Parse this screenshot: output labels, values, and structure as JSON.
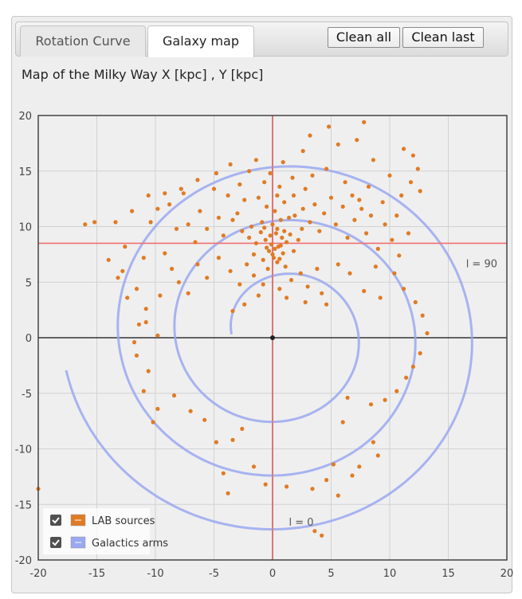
{
  "tabs": [
    {
      "label": "Rotation Curve",
      "active": false
    },
    {
      "label": "Galaxy map",
      "active": true
    }
  ],
  "buttons": {
    "clean_all": "Clean all",
    "clean_last": "Clean last"
  },
  "chart_data": {
    "type": "scatter",
    "title": "Map of the Milky Way X [kpc] , Y [kpc]",
    "xlim": [
      -20,
      20
    ],
    "ylim": [
      -20,
      20
    ],
    "xticks": [
      -20,
      -15,
      -10,
      -5,
      0,
      5,
      10,
      15,
      20
    ],
    "yticks": [
      -20,
      -15,
      -10,
      -5,
      0,
      5,
      10,
      15,
      20
    ],
    "grid": true,
    "legend": {
      "placement": "bottom-left"
    },
    "series": [
      {
        "name": "LAB sources",
        "color": "#e07b24",
        "checked": true
      },
      {
        "name": "Galactics arms",
        "color": "#9aa8f0",
        "checked": true
      }
    ],
    "reference_lines": [
      {
        "axis": "y",
        "value": 8.5,
        "label": "l = 90",
        "color": "#f07070"
      },
      {
        "axis": "x",
        "value": 0,
        "label": "l = 0",
        "color": "#f07070"
      }
    ],
    "sun_position": [
      0,
      0
    ],
    "arm_spiral": {
      "center": [
        0.7,
        0.3
      ],
      "theta_start_deg": 180,
      "r_start": 4.2,
      "r_end": 18.6,
      "turns_deg": 1070
    },
    "points": [
      [
        -0.2,
        9.2
      ],
      [
        0.3,
        9.4
      ],
      [
        0.8,
        9.0
      ],
      [
        -0.6,
        8.8
      ],
      [
        1.2,
        8.6
      ],
      [
        -1.0,
        9.5
      ],
      [
        0.5,
        8.2
      ],
      [
        -0.3,
        7.8
      ],
      [
        1.5,
        9.3
      ],
      [
        -1.4,
        8.5
      ],
      [
        0.1,
        7.2
      ],
      [
        0.9,
        7.6
      ],
      [
        -0.8,
        7.0
      ],
      [
        1.8,
        7.8
      ],
      [
        -1.6,
        7.5
      ],
      [
        0.4,
        6.8
      ],
      [
        1.1,
        6.4
      ],
      [
        -0.4,
        6.2
      ],
      [
        2.2,
        8.8
      ],
      [
        -2.0,
        9.0
      ],
      [
        0.0,
        10.2
      ],
      [
        0.7,
        10.6
      ],
      [
        -0.9,
        10.4
      ],
      [
        1.4,
        10.8
      ],
      [
        -1.8,
        10.0
      ],
      [
        2.5,
        9.8
      ],
      [
        -2.6,
        9.6
      ],
      [
        0.2,
        11.4
      ],
      [
        -0.5,
        11.8
      ],
      [
        1.0,
        12.2
      ],
      [
        -1.2,
        12.6
      ],
      [
        1.8,
        12.8
      ],
      [
        -2.4,
        12.4
      ],
      [
        0.6,
        13.6
      ],
      [
        -0.7,
        14.0
      ],
      [
        2.6,
        11.6
      ],
      [
        -3.0,
        11.2
      ],
      [
        3.2,
        10.4
      ],
      [
        -3.4,
        10.6
      ],
      [
        3.6,
        12.0
      ],
      [
        -3.8,
        12.8
      ],
      [
        4.0,
        9.6
      ],
      [
        -4.2,
        9.2
      ],
      [
        4.4,
        11.2
      ],
      [
        -4.6,
        10.8
      ],
      [
        5.0,
        12.6
      ],
      [
        -5.0,
        13.4
      ],
      [
        5.4,
        10.2
      ],
      [
        -5.6,
        9.8
      ],
      [
        6.0,
        11.8
      ],
      [
        -6.2,
        11.4
      ],
      [
        6.4,
        9.0
      ],
      [
        -6.6,
        8.6
      ],
      [
        7.0,
        10.6
      ],
      [
        -7.2,
        10.2
      ],
      [
        7.4,
        12.4
      ],
      [
        -7.6,
        13.0
      ],
      [
        8.0,
        9.4
      ],
      [
        -8.2,
        9.8
      ],
      [
        8.4,
        11.0
      ],
      [
        -8.8,
        12.0
      ],
      [
        9.0,
        8.0
      ],
      [
        -9.2,
        7.6
      ],
      [
        9.6,
        10.2
      ],
      [
        -9.8,
        11.6
      ],
      [
        10.2,
        8.8
      ],
      [
        -10.4,
        10.4
      ],
      [
        10.8,
        7.4
      ],
      [
        -11.0,
        7.2
      ],
      [
        11.6,
        9.4
      ],
      [
        12.0,
        16.4
      ],
      [
        12.4,
        15.2
      ],
      [
        11.8,
        14.0
      ],
      [
        12.6,
        13.2
      ],
      [
        11.2,
        17.0
      ],
      [
        7.8,
        19.4
      ],
      [
        4.8,
        19.0
      ],
      [
        3.2,
        18.2
      ],
      [
        2.6,
        16.8
      ],
      [
        5.6,
        17.4
      ],
      [
        7.2,
        17.8
      ],
      [
        8.6,
        16.0
      ],
      [
        -3.6,
        15.6
      ],
      [
        -2.0,
        15.0
      ],
      [
        -4.8,
        14.8
      ],
      [
        -6.4,
        14.2
      ],
      [
        -7.8,
        13.4
      ],
      [
        -9.2,
        13.0
      ],
      [
        -10.6,
        12.8
      ],
      [
        -12.0,
        11.4
      ],
      [
        -13.4,
        10.4
      ],
      [
        -16.0,
        10.2
      ],
      [
        -14.0,
        7.0
      ],
      [
        -12.8,
        6.0
      ],
      [
        -13.2,
        5.4
      ],
      [
        -11.6,
        4.4
      ],
      [
        -12.4,
        3.6
      ],
      [
        -10.8,
        2.6
      ],
      [
        -11.4,
        1.2
      ],
      [
        -9.6,
        3.8
      ],
      [
        -8.6,
        6.2
      ],
      [
        -8.0,
        5.0
      ],
      [
        -7.2,
        4.0
      ],
      [
        -6.4,
        6.6
      ],
      [
        -5.6,
        5.4
      ],
      [
        -4.6,
        7.2
      ],
      [
        -3.6,
        6.0
      ],
      [
        -2.8,
        4.8
      ],
      [
        -2.2,
        6.6
      ],
      [
        -1.6,
        5.6
      ],
      [
        -0.8,
        4.8
      ],
      [
        0.6,
        4.4
      ],
      [
        1.6,
        5.2
      ],
      [
        2.4,
        5.8
      ],
      [
        3.0,
        4.6
      ],
      [
        3.8,
        6.2
      ],
      [
        4.2,
        4.0
      ],
      [
        2.8,
        3.2
      ],
      [
        1.2,
        3.6
      ],
      [
        -1.2,
        3.8
      ],
      [
        -2.4,
        3.0
      ],
      [
        -3.4,
        2.4
      ],
      [
        4.6,
        3.0
      ],
      [
        5.6,
        6.6
      ],
      [
        6.6,
        5.8
      ],
      [
        7.8,
        4.2
      ],
      [
        8.8,
        6.4
      ],
      [
        9.2,
        3.6
      ],
      [
        10.4,
        5.8
      ],
      [
        11.2,
        4.4
      ],
      [
        12.2,
        3.2
      ],
      [
        12.8,
        2.0
      ],
      [
        13.2,
        0.4
      ],
      [
        12.6,
        -1.4
      ],
      [
        12.0,
        -2.6
      ],
      [
        11.4,
        -3.6
      ],
      [
        10.6,
        -4.8
      ],
      [
        9.6,
        -5.6
      ],
      [
        8.4,
        -6.0
      ],
      [
        6.4,
        -5.4
      ],
      [
        6.0,
        -7.6
      ],
      [
        8.6,
        -9.4
      ],
      [
        9.0,
        -10.6
      ],
      [
        7.4,
        -11.6
      ],
      [
        6.8,
        -12.4
      ],
      [
        5.2,
        -11.4
      ],
      [
        4.6,
        -12.8
      ],
      [
        3.4,
        -13.6
      ],
      [
        5.6,
        -14.2
      ],
      [
        3.6,
        -17.4
      ],
      [
        4.2,
        -17.8
      ],
      [
        1.2,
        -13.4
      ],
      [
        -0.6,
        -13.2
      ],
      [
        -1.6,
        -11.6
      ],
      [
        -3.4,
        -9.2
      ],
      [
        -4.8,
        -9.4
      ],
      [
        -4.2,
        -12.2
      ],
      [
        -3.8,
        -14.0
      ],
      [
        -2.6,
        -8.2
      ],
      [
        -5.8,
        -7.4
      ],
      [
        -7.0,
        -6.6
      ],
      [
        -8.4,
        -5.2
      ],
      [
        -9.8,
        -6.4
      ],
      [
        -10.2,
        -7.6
      ],
      [
        -11.0,
        -4.8
      ],
      [
        -10.6,
        -3.0
      ],
      [
        -11.6,
        -1.6
      ],
      [
        -11.8,
        -0.4
      ],
      [
        -10.8,
        1.4
      ],
      [
        -9.8,
        0.2
      ],
      [
        -20.0,
        -13.6
      ],
      [
        -15.2,
        10.4
      ],
      [
        -12.6,
        8.2
      ],
      [
        -1.4,
        16.0
      ],
      [
        -0.2,
        14.8
      ],
      [
        0.9,
        15.8
      ],
      [
        1.7,
        14.4
      ],
      [
        -2.8,
        13.8
      ],
      [
        0.4,
        12.8
      ],
      [
        1.9,
        11.0
      ],
      [
        2.8,
        13.4
      ],
      [
        3.4,
        14.6
      ],
      [
        4.6,
        15.2
      ],
      [
        6.2,
        14.0
      ],
      [
        6.8,
        12.8
      ],
      [
        7.6,
        11.6
      ],
      [
        8.2,
        13.6
      ],
      [
        9.4,
        12.2
      ],
      [
        10.0,
        14.6
      ],
      [
        10.6,
        11.0
      ],
      [
        11.0,
        12.8
      ],
      [
        -0.1,
        8.4
      ],
      [
        0.2,
        8.0
      ],
      [
        -0.5,
        8.1
      ],
      [
        0.7,
        8.3
      ],
      [
        0.4,
        9.8
      ],
      [
        -0.7,
        9.9
      ],
      [
        1.0,
        9.6
      ],
      [
        0.0,
        7.5
      ],
      [
        0.6,
        7.1
      ]
    ]
  }
}
